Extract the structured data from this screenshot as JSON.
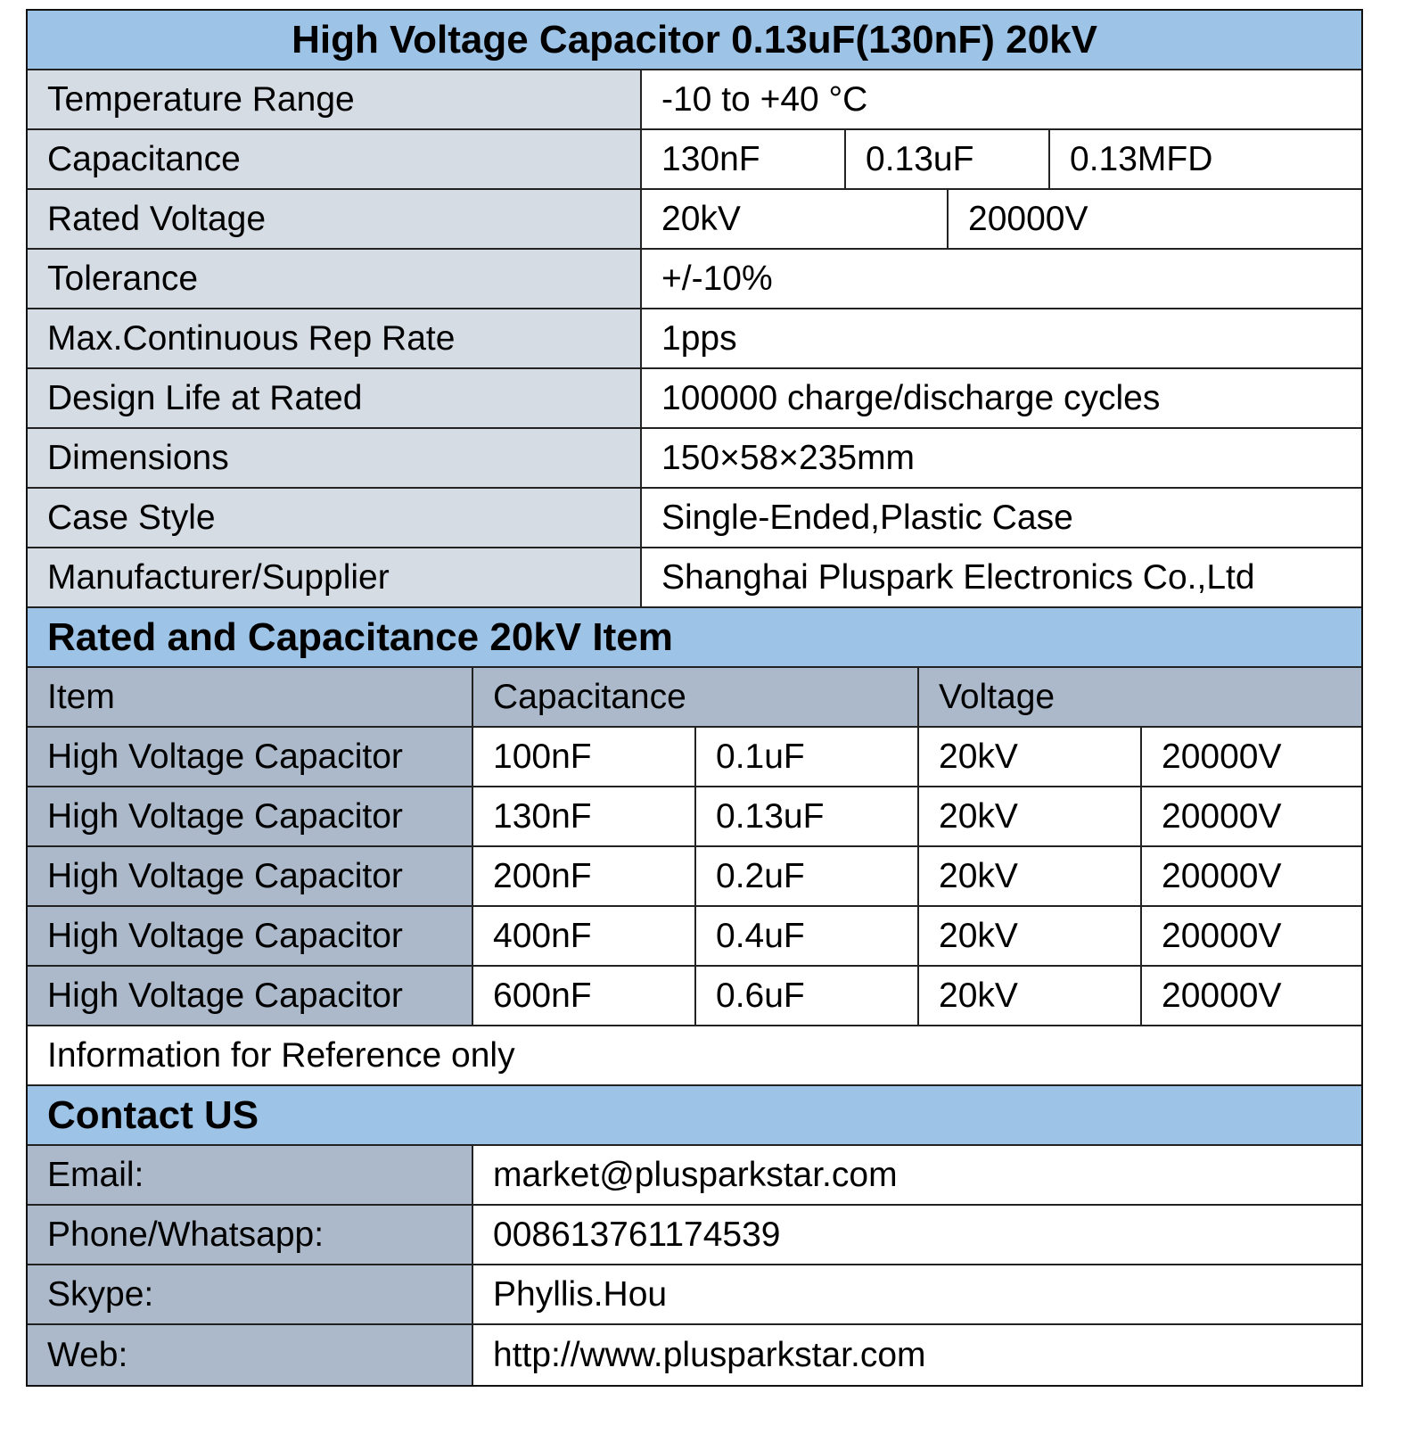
{
  "title": "High Voltage Capacitor 0.13uF(130nF) 20kV",
  "specs": {
    "temperature": {
      "label": "Temperature Range",
      "value": "-10 to +40 °C"
    },
    "capacitance": {
      "label": "Capacitance",
      "values": [
        "130nF",
        "0.13uF",
        "0.13MFD"
      ]
    },
    "voltage": {
      "label": "Rated Voltage",
      "values": [
        "20kV",
        "20000V"
      ]
    },
    "tolerance": {
      "label": "Tolerance",
      "value": "+/-10%"
    },
    "rep_rate": {
      "label": "Max.Continuous Rep Rate",
      "value": "1pps"
    },
    "design_life": {
      "label": "Design Life at Rated",
      "value": "100000 charge/discharge cycles"
    },
    "dimensions": {
      "label": "Dimensions",
      "value": "150×58×235mm"
    },
    "case_style": {
      "label": "Case Style",
      "value": "Single-Ended,Plastic Case"
    },
    "manufacturer": {
      "label": "Manufacturer/Supplier",
      "value": "Shanghai Pluspark Electronics Co.,Ltd"
    }
  },
  "items_section": {
    "title": "Rated and Capacitance 20kV Item",
    "headers": [
      "Item",
      "Capacitance",
      "Voltage"
    ],
    "rows": [
      [
        "High Voltage Capacitor",
        "100nF",
        "0.1uF",
        "20kV",
        "20000V"
      ],
      [
        "High Voltage Capacitor",
        "130nF",
        "0.13uF",
        "20kV",
        "20000V"
      ],
      [
        "High Voltage Capacitor",
        "200nF",
        "0.2uF",
        "20kV",
        "20000V"
      ],
      [
        "High Voltage Capacitor",
        "400nF",
        "0.4uF",
        "20kV",
        "20000V"
      ],
      [
        "High Voltage Capacitor",
        "600nF",
        "0.6uF",
        "20kV",
        "20000V"
      ]
    ],
    "note": "Information for Reference only"
  },
  "contact": {
    "title": "Contact US",
    "rows": [
      [
        "Email:",
        "market@plusparkstar.com"
      ],
      [
        "Phone/Whatsapp:",
        "008613761174539"
      ],
      [
        "Skype:",
        "Phyllis.Hou"
      ],
      [
        "Web:",
        "http://www.plusparkstar.com"
      ]
    ]
  },
  "colors": {
    "header": "#9dc3e6",
    "label": "#d6dce4",
    "dark_label": "#acb9ca"
  }
}
